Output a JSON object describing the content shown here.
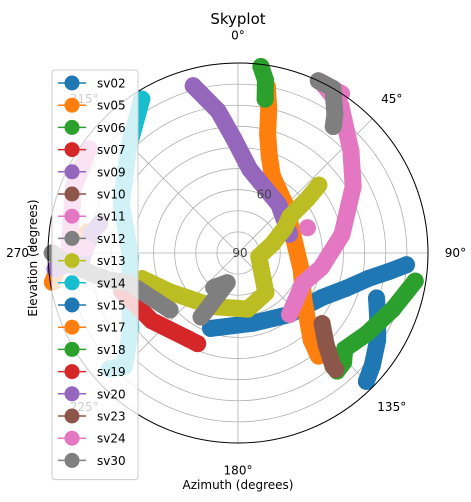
{
  "chart_data": {
    "type": "scatter",
    "projection": "polar",
    "title": "Skyplot",
    "xlabel": "Azimuth (degrees)",
    "ylabel": "Elevation (degrees)",
    "theta_zero": "north",
    "theta_direction": "clockwise",
    "r_axis": "elevation, 90 at center, 0 at edge",
    "grid": true,
    "legend_position": "upper-left",
    "angle_ticks": [
      {
        "deg": 0,
        "label": "0°"
      },
      {
        "deg": 45,
        "label": "45°"
      },
      {
        "deg": 90,
        "label": "90°"
      },
      {
        "deg": 135,
        "label": "135°"
      },
      {
        "deg": 180,
        "label": "180°"
      },
      {
        "deg": 225,
        "label": "225°"
      },
      {
        "deg": 270,
        "label": "270°"
      },
      {
        "deg": 315,
        "label": "315°"
      }
    ],
    "radial_ticks": [
      {
        "elevation": 90,
        "label": "90"
      },
      {
        "elevation": 60,
        "label": "60"
      }
    ],
    "series": [
      {
        "name": "sv02",
        "color": "#1f77b4",
        "points": [
          [
            200,
            52
          ],
          [
            168,
            56
          ],
          [
            140,
            52
          ],
          [
            118,
            45
          ],
          [
            108,
            36
          ],
          [
            101,
            27
          ],
          [
            97,
            18
          ],
          [
            94,
            10
          ]
        ]
      },
      {
        "name": "sv05",
        "color": "#ff7f0e",
        "points": [
          [
            10,
            10
          ],
          [
            12,
            20
          ],
          [
            14,
            32
          ],
          [
            18,
            42
          ],
          [
            24,
            50
          ],
          [
            45,
            58
          ],
          [
            105,
            59
          ],
          [
            125,
            52
          ],
          [
            140,
            36
          ],
          [
            142,
            28
          ]
        ]
      },
      {
        "name": "sv06",
        "color": "#2ca02c",
        "points": [
          [
            7,
            1
          ],
          [
            9,
            7
          ],
          [
            10,
            16
          ]
        ]
      },
      {
        "name": "sv07",
        "color": "#d62728",
        "points": []
      },
      {
        "name": "sv09",
        "color": "#9467bd",
        "points": [
          [
            345,
            8
          ],
          [
            352,
            22
          ],
          [
            358,
            36
          ],
          [
            8,
            50
          ],
          [
            40,
            60
          ],
          [
            70,
            64
          ]
        ]
      },
      {
        "name": "sv10",
        "color": "#8c564b",
        "points": []
      },
      {
        "name": "sv11",
        "color": "#e377c2",
        "points": []
      },
      {
        "name": "sv12",
        "color": "#7f7f7f",
        "points": []
      },
      {
        "name": "sv13",
        "color": "#bcbd22",
        "points": [
          [
            255,
            43
          ],
          [
            240,
            53
          ],
          [
            205,
            62
          ],
          [
            170,
            63
          ],
          [
            145,
            67
          ],
          [
            100,
            80
          ],
          [
            75,
            73
          ],
          [
            62,
            65
          ],
          [
            55,
            60
          ],
          [
            52,
            48
          ],
          [
            50,
            40
          ]
        ]
      },
      {
        "name": "sv14",
        "color": "#17becf",
        "points": [
          [
            328,
            4
          ],
          [
            314,
            18
          ],
          [
            293,
            30
          ],
          [
            278,
            37
          ],
          [
            268,
            39
          ],
          [
            250,
            35
          ],
          [
            235,
            28
          ],
          [
            225,
            14
          ],
          [
            228,
            8
          ]
        ]
      },
      {
        "name": "sv15",
        "color": "#1f77b4",
        "points": [
          [
            108,
            21
          ],
          [
            115,
            17
          ],
          [
            122,
            12
          ],
          [
            130,
            7
          ],
          [
            135,
            4
          ]
        ]
      },
      {
        "name": "sv17",
        "color": "#ff7f0e",
        "points": [
          [
            278,
            18
          ],
          [
            272,
            12
          ],
          [
            266,
            5
          ],
          [
            261,
            1
          ]
        ]
      },
      {
        "name": "sv18",
        "color": "#2ca02c",
        "points": [
          [
            99,
            5
          ],
          [
            110,
            12
          ],
          [
            122,
            18
          ],
          [
            132,
            22
          ],
          [
            136,
            18
          ],
          [
            140,
            17
          ]
        ]
      },
      {
        "name": "sv19",
        "color": "#d62728",
        "points": [
          [
            204,
            43
          ],
          [
            210,
            43
          ],
          [
            232,
            38
          ],
          [
            252,
            32
          ]
        ]
      },
      {
        "name": "sv20",
        "color": "#9467bd",
        "points": [
          [
            282,
            23
          ],
          [
            278,
            20
          ],
          [
            268,
            16
          ],
          [
            265,
            3
          ]
        ]
      },
      {
        "name": "sv23",
        "color": "#8c564b",
        "points": [
          [
            130,
            38
          ],
          [
            136,
            30
          ],
          [
            140,
            20
          ],
          [
            140,
            18
          ]
        ]
      },
      {
        "name": "sv24",
        "color": "#e377c2",
        "points": [
          [
            140,
            52
          ],
          [
            115,
            56
          ],
          [
            100,
            50
          ],
          [
            80,
            40
          ],
          [
            60,
            27
          ],
          [
            48,
            18
          ],
          [
            35,
            5
          ],
          [
            26,
            0
          ],
          [
            33,
            0
          ],
          [
            70,
            55
          ],
          [
            272,
            18
          ],
          [
            272,
            10
          ],
          [
            292,
            6
          ],
          [
            305,
            4
          ]
        ]
      },
      {
        "name": "sv30",
        "color": "#7f7f7f",
        "points": [
          [
            37,
            15
          ],
          [
            35,
            10
          ],
          [
            30,
            0
          ],
          [
            25,
            -2
          ],
          [
            230,
            48
          ],
          [
            255,
            36
          ],
          [
            258,
            28
          ],
          [
            262,
            20
          ],
          [
            267,
            8
          ],
          [
            270,
            2
          ],
          [
            215,
            70
          ],
          [
            200,
            75
          ],
          [
            210,
            55
          ]
        ]
      }
    ]
  }
}
